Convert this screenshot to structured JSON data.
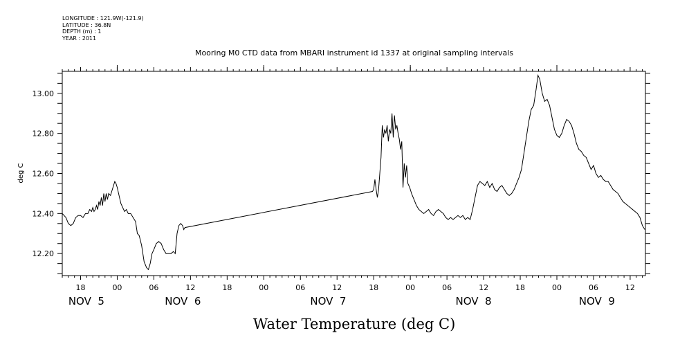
{
  "metadata": {
    "longitude": "LONGITUDE : 121.9W(-121.9)",
    "latitude": "LATITUDE : 36.8N",
    "depth": "DEPTH (m) : 1",
    "year": "YEAR : 2011"
  },
  "chart_data": {
    "type": "line",
    "title": "Mooring M0 CTD data from MBARI instrument id 1337 at original sampling intervals",
    "xlabel": "Water Temperature (deg C)",
    "ylabel": "deg C",
    "ylim": [
      12.09,
      13.11
    ],
    "yticks": [
      "12.20",
      "12.40",
      "12.60",
      "12.80",
      "13.00"
    ],
    "xlim_hours": [
      -9,
      86.5
    ],
    "xticks": [
      {
        "label": "18",
        "h": -6
      },
      {
        "label": "00",
        "h": 0
      },
      {
        "label": "06",
        "h": 6
      },
      {
        "label": "12",
        "h": 12
      },
      {
        "label": "18",
        "h": 18
      },
      {
        "label": "00",
        "h": 24
      },
      {
        "label": "06",
        "h": 30
      },
      {
        "label": "12",
        "h": 36
      },
      {
        "label": "18",
        "h": 42
      },
      {
        "label": "00",
        "h": 48
      },
      {
        "label": "06",
        "h": 54
      },
      {
        "label": "12",
        "h": 60
      },
      {
        "label": "18",
        "h": 66
      },
      {
        "label": "00",
        "h": 72
      },
      {
        "label": "06",
        "h": 78
      },
      {
        "label": "12",
        "h": 84
      }
    ],
    "day_labels": [
      {
        "label": "NOV  5",
        "h": -8
      },
      {
        "label": "NOV  6",
        "h": 7.8
      },
      {
        "label": "NOV  7",
        "h": 31.6
      },
      {
        "label": "NOV  8",
        "h": 55.4
      },
      {
        "label": "NOV  9",
        "h": 75.6
      }
    ],
    "grid": false,
    "series": [
      {
        "name": "",
        "color": "#000000",
        "points": [
          [
            -9.0,
            12.4
          ],
          [
            -8.4,
            12.38
          ],
          [
            -8.0,
            12.35
          ],
          [
            -7.6,
            12.34
          ],
          [
            -7.2,
            12.35
          ],
          [
            -6.8,
            12.38
          ],
          [
            -6.4,
            12.39
          ],
          [
            -6.0,
            12.39
          ],
          [
            -5.6,
            12.38
          ],
          [
            -5.2,
            12.4
          ],
          [
            -4.8,
            12.4
          ],
          [
            -4.5,
            12.42
          ],
          [
            -4.2,
            12.41
          ],
          [
            -4.0,
            12.43
          ],
          [
            -3.8,
            12.41
          ],
          [
            -3.6,
            12.42
          ],
          [
            -3.4,
            12.44
          ],
          [
            -3.2,
            12.42
          ],
          [
            -3.0,
            12.46
          ],
          [
            -2.8,
            12.44
          ],
          [
            -2.6,
            12.48
          ],
          [
            -2.4,
            12.44
          ],
          [
            -2.2,
            12.5
          ],
          [
            -2.0,
            12.46
          ],
          [
            -1.8,
            12.5
          ],
          [
            -1.6,
            12.47
          ],
          [
            -1.4,
            12.5
          ],
          [
            -1.1,
            12.49
          ],
          [
            -0.8,
            12.52
          ],
          [
            -0.6,
            12.54
          ],
          [
            -0.4,
            12.56
          ],
          [
            -0.2,
            12.55
          ],
          [
            0.0,
            12.53
          ],
          [
            0.3,
            12.49
          ],
          [
            0.6,
            12.45
          ],
          [
            0.9,
            12.43
          ],
          [
            1.2,
            12.41
          ],
          [
            1.5,
            12.42
          ],
          [
            1.8,
            12.4
          ],
          [
            2.2,
            12.4
          ],
          [
            2.6,
            12.38
          ],
          [
            3.0,
            12.36
          ],
          [
            3.3,
            12.3
          ],
          [
            3.6,
            12.29
          ],
          [
            4.0,
            12.24
          ],
          [
            4.4,
            12.16
          ],
          [
            4.8,
            12.13
          ],
          [
            5.1,
            12.12
          ],
          [
            5.4,
            12.15
          ],
          [
            5.7,
            12.2
          ],
          [
            6.0,
            12.22
          ],
          [
            6.4,
            12.25
          ],
          [
            6.8,
            12.26
          ],
          [
            7.2,
            12.25
          ],
          [
            7.6,
            12.22
          ],
          [
            8.0,
            12.2
          ],
          [
            8.4,
            12.2
          ],
          [
            8.8,
            12.2
          ],
          [
            9.2,
            12.21
          ],
          [
            9.5,
            12.2
          ],
          [
            9.8,
            12.3
          ],
          [
            10.1,
            12.34
          ],
          [
            10.4,
            12.35
          ],
          [
            10.7,
            12.34
          ],
          [
            10.9,
            12.32
          ],
          [
            11.1,
            12.33
          ],
          [
            41.8,
            12.51
          ],
          [
            42.0,
            12.52
          ],
          [
            42.2,
            12.57
          ],
          [
            42.4,
            12.52
          ],
          [
            42.6,
            12.48
          ],
          [
            42.8,
            12.52
          ],
          [
            43.0,
            12.6
          ],
          [
            43.2,
            12.68
          ],
          [
            43.4,
            12.84
          ],
          [
            43.6,
            12.78
          ],
          [
            43.8,
            12.82
          ],
          [
            44.0,
            12.8
          ],
          [
            44.2,
            12.84
          ],
          [
            44.4,
            12.76
          ],
          [
            44.6,
            12.82
          ],
          [
            44.8,
            12.8
          ],
          [
            45.0,
            12.9
          ],
          [
            45.2,
            12.78
          ],
          [
            45.4,
            12.89
          ],
          [
            45.6,
            12.82
          ],
          [
            45.8,
            12.84
          ],
          [
            46.0,
            12.8
          ],
          [
            46.2,
            12.77
          ],
          [
            46.4,
            12.72
          ],
          [
            46.6,
            12.76
          ],
          [
            46.8,
            12.53
          ],
          [
            47.0,
            12.65
          ],
          [
            47.2,
            12.58
          ],
          [
            47.4,
            12.64
          ],
          [
            47.6,
            12.55
          ],
          [
            47.9,
            12.53
          ],
          [
            48.2,
            12.5
          ],
          [
            48.6,
            12.47
          ],
          [
            49.0,
            12.44
          ],
          [
            49.4,
            12.42
          ],
          [
            49.8,
            12.41
          ],
          [
            50.2,
            12.4
          ],
          [
            50.6,
            12.41
          ],
          [
            51.0,
            12.42
          ],
          [
            51.4,
            12.4
          ],
          [
            51.8,
            12.39
          ],
          [
            52.2,
            12.41
          ],
          [
            52.6,
            12.42
          ],
          [
            53.0,
            12.41
          ],
          [
            53.4,
            12.4
          ],
          [
            53.8,
            12.38
          ],
          [
            54.2,
            12.37
          ],
          [
            54.6,
            12.38
          ],
          [
            55.0,
            12.37
          ],
          [
            55.4,
            12.38
          ],
          [
            55.8,
            12.39
          ],
          [
            56.2,
            12.38
          ],
          [
            56.6,
            12.39
          ],
          [
            57.0,
            12.37
          ],
          [
            57.4,
            12.38
          ],
          [
            57.8,
            12.37
          ],
          [
            58.2,
            12.42
          ],
          [
            58.6,
            12.48
          ],
          [
            59.0,
            12.54
          ],
          [
            59.4,
            12.56
          ],
          [
            59.8,
            12.55
          ],
          [
            60.2,
            12.54
          ],
          [
            60.6,
            12.56
          ],
          [
            61.0,
            12.53
          ],
          [
            61.4,
            12.55
          ],
          [
            61.8,
            12.52
          ],
          [
            62.2,
            12.51
          ],
          [
            62.6,
            12.53
          ],
          [
            63.0,
            12.54
          ],
          [
            63.4,
            12.52
          ],
          [
            63.8,
            12.5
          ],
          [
            64.2,
            12.49
          ],
          [
            64.6,
            12.5
          ],
          [
            65.0,
            12.52
          ],
          [
            65.4,
            12.55
          ],
          [
            65.8,
            12.58
          ],
          [
            66.2,
            12.62
          ],
          [
            66.6,
            12.7
          ],
          [
            67.0,
            12.78
          ],
          [
            67.4,
            12.86
          ],
          [
            67.8,
            12.92
          ],
          [
            68.2,
            12.94
          ],
          [
            68.6,
            13.02
          ],
          [
            68.9,
            13.09
          ],
          [
            69.2,
            13.07
          ],
          [
            69.6,
            13.0
          ],
          [
            70.0,
            12.96
          ],
          [
            70.4,
            12.97
          ],
          [
            70.8,
            12.94
          ],
          [
            71.2,
            12.88
          ],
          [
            71.6,
            12.82
          ],
          [
            72.0,
            12.79
          ],
          [
            72.4,
            12.78
          ],
          [
            72.8,
            12.8
          ],
          [
            73.2,
            12.84
          ],
          [
            73.6,
            12.87
          ],
          [
            74.0,
            12.86
          ],
          [
            74.4,
            12.84
          ],
          [
            74.8,
            12.8
          ],
          [
            75.2,
            12.75
          ],
          [
            75.6,
            12.72
          ],
          [
            76.0,
            12.71
          ],
          [
            76.4,
            12.69
          ],
          [
            76.8,
            12.68
          ],
          [
            77.2,
            12.65
          ],
          [
            77.6,
            12.62
          ],
          [
            78.0,
            12.64
          ],
          [
            78.4,
            12.6
          ],
          [
            78.8,
            12.58
          ],
          [
            79.2,
            12.59
          ],
          [
            79.6,
            12.57
          ],
          [
            80.0,
            12.56
          ],
          [
            80.4,
            12.56
          ],
          [
            80.8,
            12.54
          ],
          [
            81.2,
            12.52
          ],
          [
            81.6,
            12.51
          ],
          [
            82.0,
            12.5
          ],
          [
            82.4,
            12.48
          ],
          [
            82.8,
            12.46
          ],
          [
            83.2,
            12.45
          ],
          [
            83.6,
            12.44
          ],
          [
            84.0,
            12.43
          ],
          [
            84.4,
            12.42
          ],
          [
            84.8,
            12.41
          ],
          [
            85.2,
            12.4
          ],
          [
            85.6,
            12.38
          ],
          [
            86.0,
            12.34
          ],
          [
            86.4,
            12.32
          ]
        ]
      }
    ]
  }
}
